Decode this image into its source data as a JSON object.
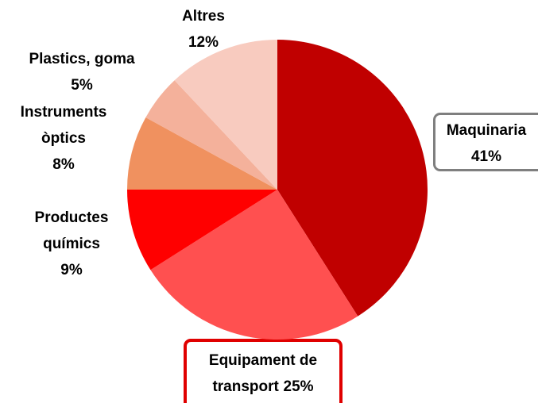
{
  "chart_data": {
    "type": "pie",
    "categories": [
      "Maquinaria",
      "Equipament de transport",
      "Productes químics",
      "Instruments òptics",
      "Plastics, goma",
      "Altres"
    ],
    "values": [
      41,
      25,
      9,
      8,
      5,
      12
    ],
    "value_labels": [
      "41%",
      "25%",
      "9%",
      "8%",
      "5%",
      "12%"
    ],
    "colors": [
      "#c00000",
      "#ff5050",
      "#ff0000",
      "#f0915f",
      "#f4b19b",
      "#f8cbbf"
    ]
  }
}
